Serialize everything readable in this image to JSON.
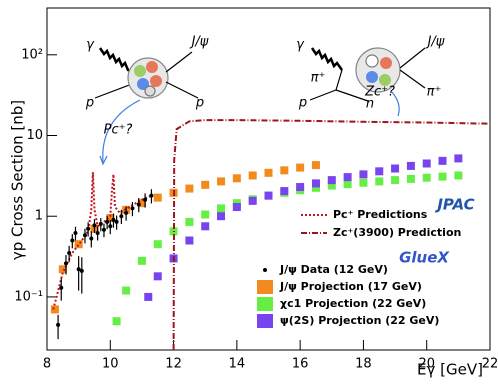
{
  "chart_data": {
    "type": "line",
    "y_label": "γp Cross Section [nb]",
    "x_label": "Eγ [GeV]",
    "xlim": [
      8,
      22
    ],
    "xticks": [
      8,
      10,
      12,
      14,
      16,
      18,
      20,
      22
    ],
    "ylim": [
      0.022,
      380
    ],
    "yticks": [
      {
        "value": 0.1,
        "label": "10⁻¹"
      },
      1,
      10,
      {
        "value": 100,
        "label": "10²"
      }
    ],
    "log_y": true,
    "series": [
      {
        "name": "Pc⁺ Predictions",
        "color": "#c0141c",
        "style": "dotted",
        "x": [
          8.2,
          8.5,
          8.8,
          9.1,
          9.3,
          9.4,
          9.45,
          9.5,
          9.6,
          9.8,
          10.0,
          10.05,
          10.1,
          10.15,
          10.3,
          10.6,
          11.0,
          11.3
        ],
        "values": [
          0.07,
          0.2,
          0.35,
          0.5,
          0.65,
          1.2,
          3.5,
          1.2,
          0.75,
          0.85,
          1.0,
          2.0,
          3.3,
          1.3,
          1.1,
          1.3,
          1.6,
          1.8
        ]
      },
      {
        "name": "Zc⁺(3900) Prediction",
        "color": "#a0141c",
        "style": "dashdot",
        "x": [
          12.0,
          12.02,
          12.1,
          12.5,
          13,
          14,
          16,
          18,
          20,
          22
        ],
        "values": [
          0.022,
          5,
          12,
          15,
          15.5,
          15.5,
          15.2,
          14.8,
          14.5,
          14
        ]
      },
      {
        "name": "J/ψ Data (12 GeV)",
        "color": "#000000",
        "style": "points",
        "x": [
          8.35,
          8.45,
          8.6,
          8.7,
          8.8,
          8.9,
          9.0,
          9.1,
          9.2,
          9.3,
          9.4,
          9.5,
          9.6,
          9.7,
          9.8,
          9.9,
          10.0,
          10.1,
          10.2,
          10.35,
          10.5,
          10.7,
          10.9,
          11.1,
          11.3
        ],
        "values": [
          0.045,
          0.13,
          0.26,
          0.35,
          0.5,
          0.62,
          0.22,
          0.21,
          0.58,
          0.7,
          0.53,
          0.77,
          0.62,
          0.8,
          0.68,
          0.85,
          0.75,
          0.9,
          0.85,
          1.0,
          1.1,
          1.25,
          1.4,
          1.6,
          1.8
        ],
        "errors": [
          0.015,
          0.04,
          0.07,
          0.08,
          0.1,
          0.12,
          0.1,
          0.1,
          0.12,
          0.14,
          0.12,
          0.15,
          0.12,
          0.15,
          0.13,
          0.16,
          0.15,
          0.18,
          0.17,
          0.2,
          0.22,
          0.25,
          0.28,
          0.32,
          0.36
        ]
      },
      {
        "name": "J/ψ Projection (17 GeV)",
        "color": "#f28a1e",
        "style": "squares",
        "x": [
          8.25,
          8.5,
          9,
          9.5,
          10,
          10.5,
          11,
          11.5,
          12,
          12.5,
          13,
          13.5,
          14,
          14.5,
          15,
          15.5,
          16,
          16.5
        ],
        "values": [
          0.07,
          0.22,
          0.45,
          0.7,
          0.95,
          1.2,
          1.45,
          1.7,
          1.95,
          2.2,
          2.45,
          2.7,
          2.95,
          3.2,
          3.45,
          3.7,
          4.0,
          4.3
        ]
      },
      {
        "name": "χc1 Projection (22 GeV)",
        "color": "#66ee44",
        "style": "squares",
        "x": [
          10.2,
          10.5,
          11,
          11.5,
          12,
          12.5,
          13,
          13.5,
          14,
          14.5,
          15,
          15.5,
          16,
          16.5,
          17,
          17.5,
          18,
          18.5,
          19,
          19.5,
          20,
          20.5,
          21
        ],
        "values": [
          0.05,
          0.12,
          0.28,
          0.45,
          0.65,
          0.85,
          1.05,
          1.25,
          1.45,
          1.62,
          1.8,
          1.95,
          2.1,
          2.25,
          2.4,
          2.5,
          2.6,
          2.7,
          2.8,
          2.9,
          3.0,
          3.1,
          3.2
        ]
      },
      {
        "name": "ψ(2S) Projection (22 GeV)",
        "color": "#7744ee",
        "style": "squares",
        "x": [
          11.2,
          11.5,
          12,
          12.5,
          13,
          13.5,
          14,
          14.5,
          15,
          15.5,
          16,
          16.5,
          17,
          17.5,
          18,
          18.5,
          19,
          19.5,
          20,
          20.5,
          21
        ],
        "values": [
          0.1,
          0.18,
          0.3,
          0.5,
          0.75,
          1.0,
          1.3,
          1.55,
          1.8,
          2.05,
          2.3,
          2.55,
          2.8,
          3.05,
          3.3,
          3.6,
          3.9,
          4.2,
          4.5,
          4.85,
          5.2
        ]
      }
    ],
    "annotations": [
      "γ",
      "J/ψ",
      "p",
      "p",
      "Pc⁺?",
      "γ",
      "J/ψ",
      "π⁺",
      "p",
      "n",
      "π⁺",
      "Zc⁺?",
      "JPAC",
      "GlueX"
    ]
  }
}
